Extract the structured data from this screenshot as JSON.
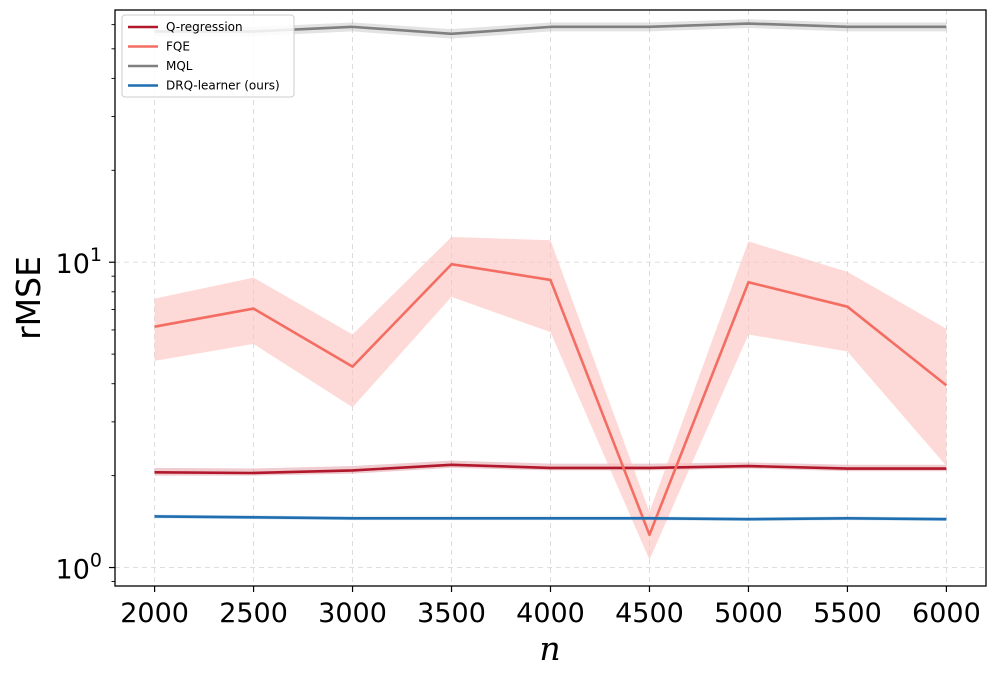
{
  "chart_data": {
    "type": "line",
    "xlabel": "n",
    "ylabel": "rMSE",
    "yscale": "log",
    "x": [
      2000,
      2500,
      3000,
      3500,
      4000,
      4500,
      5000,
      5500,
      6000
    ],
    "xlim": [
      1800,
      6200
    ],
    "ylim": [
      0.87,
      67
    ],
    "xticks": [
      "2000",
      "2500",
      "3000",
      "3500",
      "4000",
      "4500",
      "5000",
      "5500",
      "6000"
    ],
    "yticks": [
      {
        "value": 1,
        "base": "10",
        "exp": "0"
      },
      {
        "value": 10,
        "base": "10",
        "exp": "1"
      }
    ],
    "grid": true,
    "legend_position": "top-left",
    "series": [
      {
        "name": "Q-regression",
        "color": "#b2182b",
        "values": [
          2.05,
          2.04,
          2.08,
          2.17,
          2.12,
          2.12,
          2.15,
          2.11,
          2.11
        ],
        "lower": [
          2.0,
          2.0,
          2.03,
          2.12,
          2.08,
          2.08,
          2.11,
          2.07,
          2.07
        ],
        "upper": [
          2.12,
          2.11,
          2.15,
          2.24,
          2.19,
          2.19,
          2.21,
          2.17,
          2.17
        ]
      },
      {
        "name": "FQE",
        "color": "#f46d63",
        "band_color": "#fcc0bd",
        "values": [
          6.15,
          7.05,
          4.55,
          9.85,
          8.75,
          1.28,
          8.6,
          7.15,
          3.95
        ],
        "lower": [
          4.75,
          5.4,
          3.35,
          7.7,
          5.9,
          1.06,
          5.8,
          5.1,
          2.15
        ],
        "upper": [
          7.6,
          8.9,
          5.8,
          12.1,
          11.8,
          1.52,
          11.7,
          9.3,
          6.05
        ]
      },
      {
        "name": "MQL",
        "color": "#808080",
        "values": [
          57,
          57,
          59,
          56,
          59,
          59,
          60.5,
          59,
          59
        ],
        "lower": [
          55,
          55,
          57,
          54,
          57,
          57,
          58.5,
          57,
          57
        ],
        "upper": [
          59,
          59,
          61,
          58,
          61,
          61,
          62.5,
          61,
          61
        ]
      },
      {
        "name": "DRQ-learner (ours)",
        "color": "#1f6fb0",
        "values": [
          1.47,
          1.46,
          1.45,
          1.45,
          1.45,
          1.45,
          1.44,
          1.45,
          1.44
        ],
        "lower": [
          1.45,
          1.44,
          1.43,
          1.43,
          1.43,
          1.43,
          1.42,
          1.43,
          1.42
        ],
        "upper": [
          1.49,
          1.48,
          1.47,
          1.47,
          1.47,
          1.47,
          1.46,
          1.47,
          1.46
        ]
      }
    ]
  }
}
